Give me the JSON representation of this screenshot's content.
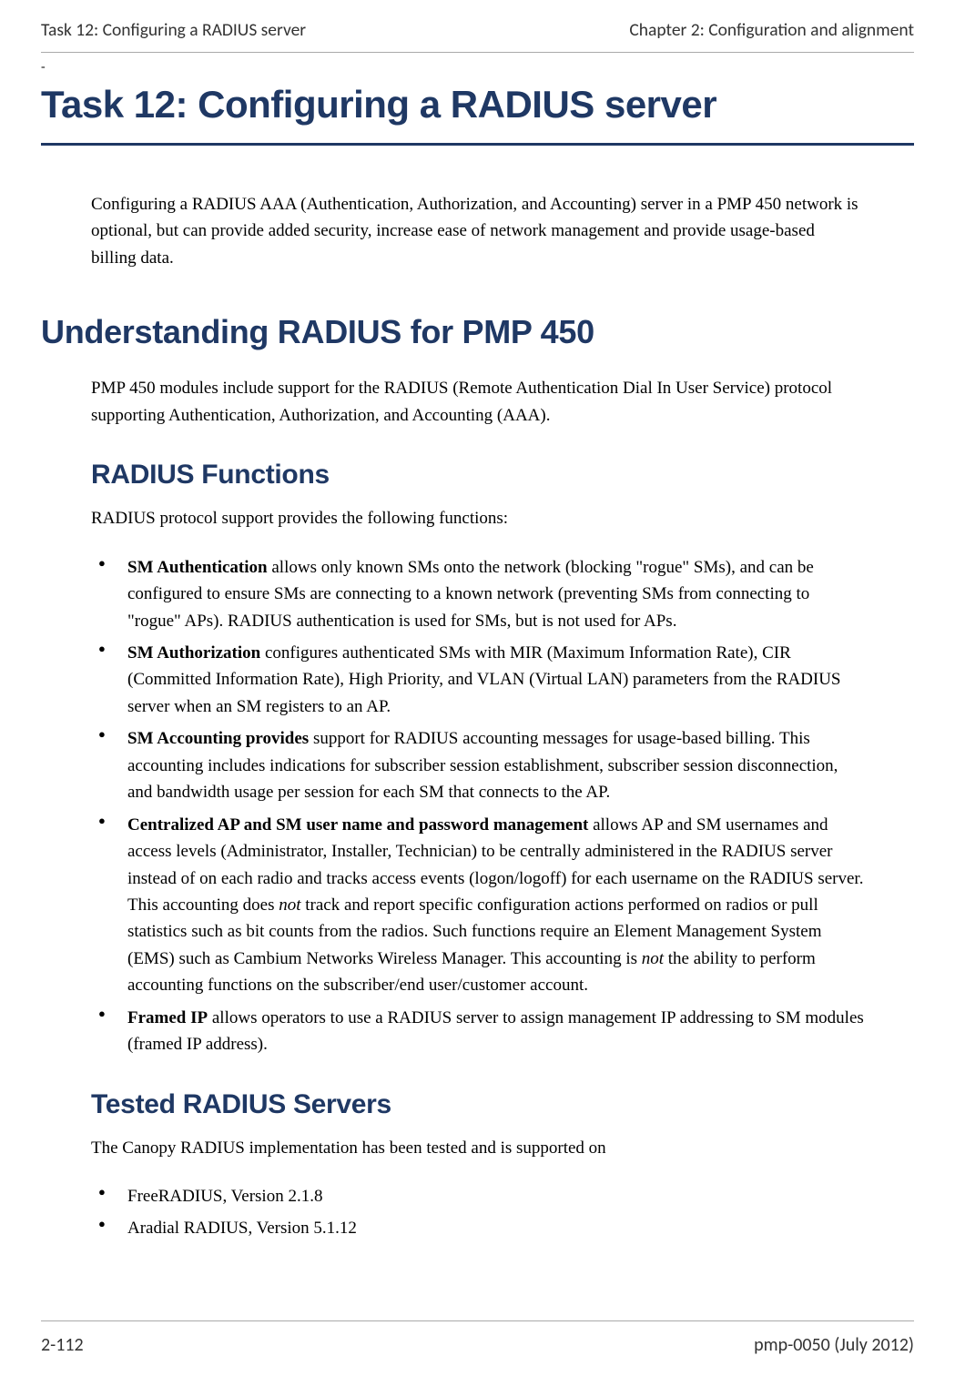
{
  "header": {
    "left": "Task 12: Configuring a RADIUS server",
    "right": "Chapter 2:  Configuration and alignment"
  },
  "dash": "-",
  "main_title": "Task 12: Configuring a RADIUS server",
  "intro": "Configuring a RADIUS AAA (Authentication, Authorization, and Accounting) server in a PMP 450 network is optional, but can provide added security, increase ease of network management and provide usage-based billing data.",
  "h2_understanding": "Understanding RADIUS for PMP 450",
  "understanding_para": "PMP 450 modules include support for the RADIUS (Remote Authentication Dial In User Service) protocol supporting Authentication, Authorization, and Accounting (AAA).",
  "h3_functions": "RADIUS Functions",
  "functions_intro": "RADIUS protocol support provides the following functions:",
  "functions_list": [
    {
      "bold": "SM Authentication",
      "rest": " allows only known SMs onto the network (blocking \"rogue\" SMs), and can be configured to ensure SMs are connecting to a known network (preventing SMs from connecting to \"rogue\" APs). RADIUS authentication is used for SMs, but is not used for APs."
    },
    {
      "bold": "SM Authorization",
      "rest": " configures authenticated SMs with MIR (Maximum Information Rate), CIR (Committed Information Rate), High Priority, and VLAN (Virtual LAN) parameters from the RADIUS server when an SM registers to an AP."
    },
    {
      "bold": "SM Accounting provides",
      "rest": " support for RADIUS accounting messages for usage-based billing.  This accounting includes indications for subscriber session establishment, subscriber session disconnection, and bandwidth usage per session for each SM that connects to the AP."
    },
    {
      "bold": "Centralized AP and SM user name and password management",
      "rest_prefix": " allows AP and SM usernames and access levels (Administrator, Installer, Technician) to be centrally administered in the RADIUS server instead of on each radio and tracks access events (logon/logoff) for each username on the RADIUS server. This accounting does ",
      "italic1": "not",
      "mid": " track and report specific configuration actions performed on radios or pull statistics such as bit counts from the radios. Such functions require an Element Management System (EMS) such as Cambium Networks Wireless Manager. This accounting is ",
      "italic2": "not",
      "rest_suffix": " the ability to perform accounting functions on the subscriber/end user/customer account."
    },
    {
      "bold": "Framed IP",
      "rest": " allows operators to use a RADIUS server to assign management IP addressing to SM modules (framed IP address)."
    }
  ],
  "h3_tested": "Tested RADIUS Servers",
  "tested_intro": "The Canopy RADIUS implementation has been tested and is supported on",
  "tested_list": [
    "FreeRADIUS, Version 2.1.8",
    "Aradial RADIUS, Version 5.1.12"
  ],
  "footer": {
    "left": "2-112",
    "right": "pmp-0050 (July 2012)"
  },
  "colors": {
    "heading": "#1f3864",
    "text": "#000000",
    "header_text": "#333333"
  }
}
